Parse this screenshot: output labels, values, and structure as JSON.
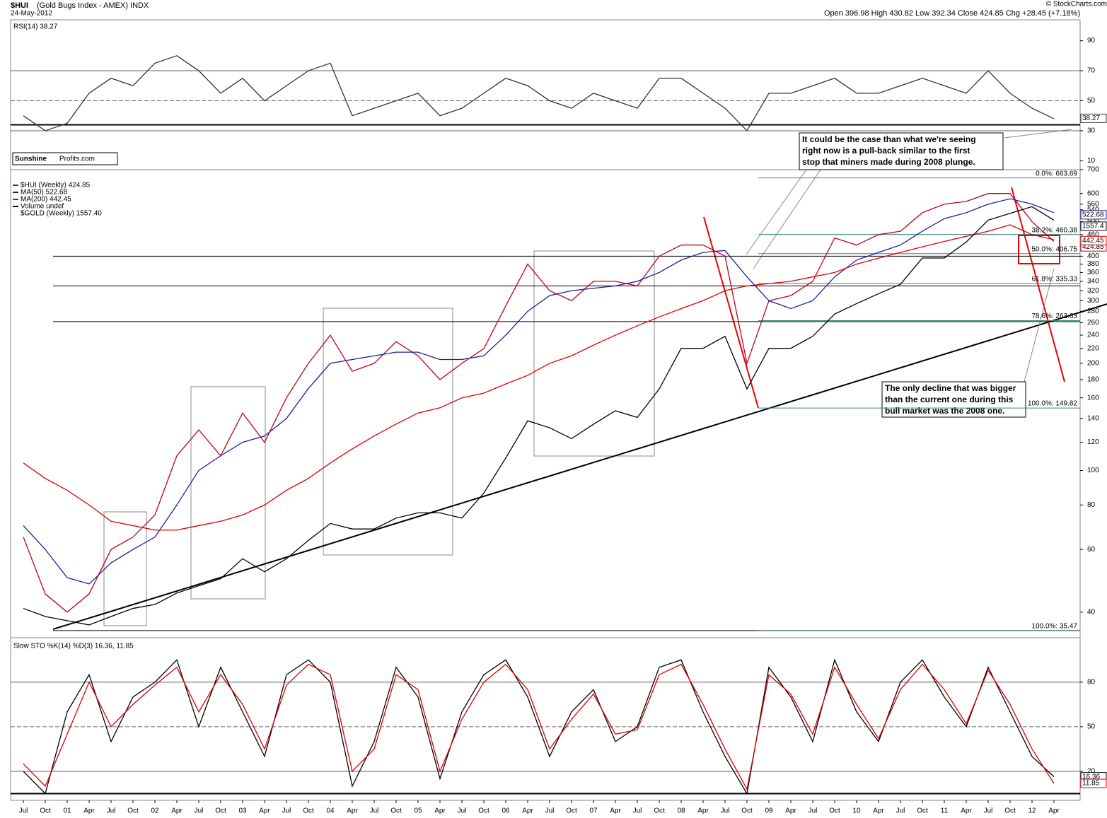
{
  "header": {
    "symbol": "$HUI",
    "title": "(Gold Bugs Index - AMEX) INDX",
    "date": "24-May-2012",
    "quote": "Open 396.98  High 430.82  Low 392.34  Close 424.85  Chg +28.45 (+7.18%)",
    "credit": "© StockCharts.com"
  },
  "logo": {
    "part1": "Sunshine",
    "part2": "Profits.com"
  },
  "annotations": [
    [
      "It could be the case than what we're seeing",
      "right now is a pull-back similar to the first",
      "stop that miners made during 2008 plunge."
    ],
    [
      "The only decline that was bigger",
      "than the current one during this",
      "bull market was the 2008 one."
    ]
  ],
  "chart_data": [
    {
      "type": "line",
      "title": "RSI(14) 38.27",
      "ylim": [
        5,
        103
      ],
      "yticks": [
        10,
        30,
        50,
        70,
        90
      ],
      "grid_lines": [
        30,
        50,
        70
      ],
      "support": [
        34
      ],
      "series": [
        {
          "name": "RSI(14)",
          "color": "#333333",
          "last_value": 38.27,
          "values": [
            40,
            30,
            35,
            55,
            65,
            60,
            75,
            80,
            70,
            55,
            65,
            50,
            60,
            70,
            75,
            40,
            45,
            50,
            55,
            40,
            45,
            55,
            65,
            60,
            50,
            45,
            55,
            50,
            45,
            65,
            65,
            55,
            45,
            30,
            55,
            55,
            60,
            65,
            55,
            55,
            60,
            65,
            60,
            55,
            70,
            55,
            45,
            38
          ]
        }
      ]
    },
    {
      "type": "line",
      "log": true,
      "ylim": [
        35,
        700
      ],
      "y2lim": [
        251,
        2007
      ],
      "yticks": [
        40,
        60,
        80,
        100,
        120,
        140,
        160,
        180,
        200,
        220,
        240,
        260,
        280,
        300,
        320,
        340,
        360,
        380,
        400,
        460,
        500,
        540,
        560,
        600,
        700
      ],
      "legend_extra": [
        "Volume undef"
      ],
      "support": [
        400,
        330,
        262,
        35.5
      ],
      "fib": [
        {
          "value": 663.69,
          "label": "0.0%: 663.69"
        },
        {
          "value": 460.38,
          "label": "38.2%: 460.38"
        },
        {
          "value": 406.75,
          "label": "50.0%: 406.75"
        },
        {
          "value": 335.33,
          "label": "61.8%: 335.33"
        },
        {
          "value": 263.63,
          "label": "78.6%: 263.63"
        },
        {
          "value": 149.82,
          "label": "100.0%: 149.82"
        },
        {
          "value": 35.47,
          "label": "100.0%: 35.47"
        }
      ],
      "series": [
        {
          "name": "$HUI (Weekly) 424.85",
          "color": "#c00020",
          "last_value": 424.85,
          "values": [
            65,
            45,
            40,
            45,
            60,
            65,
            75,
            110,
            130,
            110,
            145,
            120,
            160,
            200,
            240,
            190,
            200,
            230,
            210,
            180,
            200,
            220,
            290,
            380,
            320,
            300,
            340,
            340,
            330,
            400,
            430,
            430,
            400,
            200,
            300,
            310,
            340,
            450,
            430,
            460,
            470,
            530,
            560,
            570,
            600,
            600,
            500,
            440
          ]
        },
        {
          "name": "MA(50) 522.68",
          "color": "#1f1f9f",
          "last_value": 522.68,
          "values": [
            70,
            60,
            50,
            48,
            55,
            60,
            65,
            80,
            100,
            110,
            120,
            125,
            140,
            170,
            200,
            205,
            210,
            215,
            215,
            205,
            205,
            210,
            240,
            280,
            310,
            320,
            325,
            330,
            340,
            360,
            390,
            410,
            415,
            350,
            300,
            285,
            300,
            350,
            390,
            410,
            430,
            470,
            510,
            530,
            560,
            580,
            560,
            530
          ]
        },
        {
          "name": "MA(200) 442.45",
          "color": "#e00000",
          "last_value": 442.45,
          "values": [
            105,
            95,
            88,
            80,
            72,
            70,
            68,
            68,
            70,
            72,
            75,
            80,
            88,
            95,
            105,
            115,
            125,
            135,
            145,
            150,
            160,
            165,
            175,
            185,
            200,
            210,
            225,
            240,
            255,
            270,
            285,
            300,
            320,
            330,
            335,
            340,
            350,
            360,
            380,
            395,
            410,
            425,
            440,
            455,
            470,
            490,
            460,
            445
          ]
        },
        {
          "name": "$GOLD (Weekly) 1557.40",
          "color": "#000000",
          "axis": "y2",
          "last_value": 1557.4,
          "values": [
            280,
            270,
            265,
            260,
            270,
            280,
            285,
            300,
            310,
            320,
            350,
            330,
            350,
            380,
            410,
            400,
            400,
            420,
            430,
            430,
            420,
            470,
            550,
            650,
            630,
            600,
            640,
            680,
            660,
            750,
            900,
            900,
            950,
            750,
            900,
            900,
            950,
            1050,
            1100,
            1150,
            1200,
            1350,
            1350,
            1450,
            1600,
            1650,
            1700,
            1600
          ]
        }
      ]
    },
    {
      "type": "line",
      "title": "Slow STO %K(14) %D(3) 16.36, 11.85",
      "ylim": [
        0,
        108
      ],
      "yticks": [
        20,
        50,
        80
      ],
      "grid_lines": [
        20,
        50,
        80
      ],
      "support": [
        5
      ],
      "categories": [
        "Jul",
        "Oct",
        "01",
        "Apr",
        "Jul",
        "Oct",
        "02",
        "Apr",
        "Jul",
        "Oct",
        "03",
        "Apr",
        "Jul",
        "Oct",
        "04",
        "Apr",
        "Jul",
        "Oct",
        "05",
        "Apr",
        "Jul",
        "Oct",
        "06",
        "Apr",
        "Jul",
        "Oct",
        "07",
        "Apr",
        "Jul",
        "Oct",
        "08",
        "Apr",
        "Jul",
        "Oct",
        "09",
        "Apr",
        "Jul",
        "Oct",
        "10",
        "Apr",
        "Jul",
        "Oct",
        "11",
        "Apr",
        "Jul",
        "Oct",
        "12",
        "Apr"
      ],
      "series": [
        {
          "name": "%K(14)",
          "color": "#000000",
          "last_value": 16.36,
          "values": [
            20,
            5,
            60,
            85,
            40,
            70,
            80,
            95,
            50,
            90,
            60,
            30,
            85,
            95,
            80,
            10,
            40,
            90,
            70,
            15,
            60,
            85,
            95,
            70,
            30,
            60,
            75,
            40,
            50,
            90,
            95,
            60,
            30,
            5,
            90,
            70,
            40,
            95,
            60,
            40,
            80,
            95,
            70,
            50,
            90,
            60,
            30,
            16.36
          ]
        },
        {
          "name": "%D(3)",
          "color": "#e00000",
          "last_value": 11.85,
          "values": [
            25,
            10,
            45,
            80,
            50,
            65,
            78,
            90,
            60,
            85,
            65,
            35,
            78,
            92,
            85,
            20,
            35,
            85,
            75,
            20,
            55,
            80,
            92,
            75,
            35,
            55,
            72,
            45,
            48,
            85,
            92,
            65,
            35,
            8,
            85,
            72,
            45,
            90,
            65,
            42,
            75,
            92,
            75,
            52,
            88,
            65,
            35,
            11.85
          ]
        }
      ]
    }
  ]
}
